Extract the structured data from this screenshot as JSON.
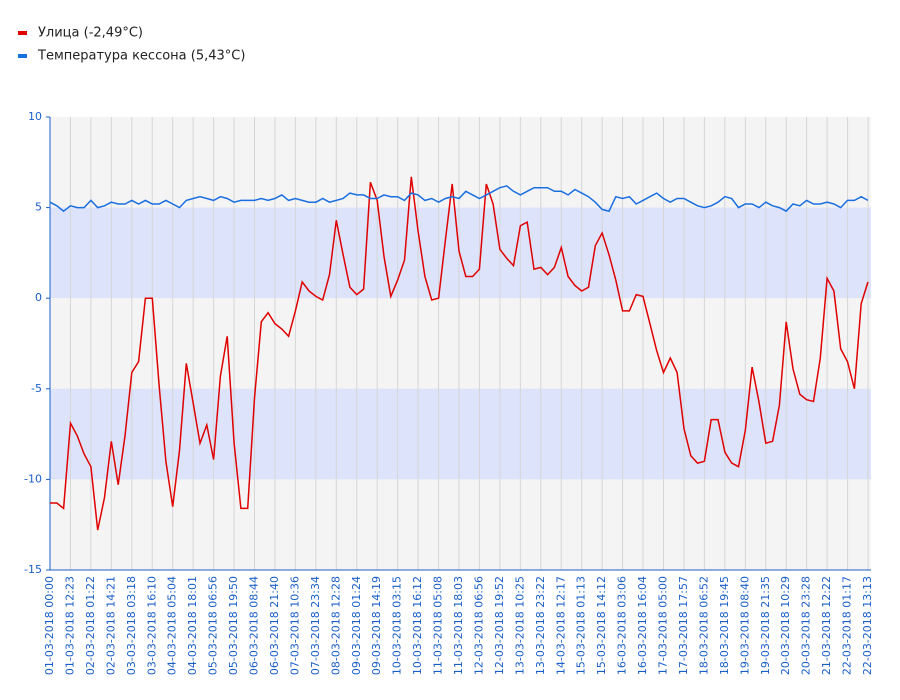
{
  "chart_data": {
    "type": "line",
    "legend": "top-left",
    "grid": true,
    "ylim": [
      -15,
      10
    ],
    "yticks": [
      10,
      5,
      0,
      -5,
      -10,
      -15
    ],
    "categories": [
      "01-03-2018 00:00",
      null,
      null,
      "01-03-2018 12:23",
      null,
      null,
      "02-03-2018 01:22",
      null,
      null,
      "02-03-2018 14:21",
      null,
      null,
      "03-03-2018 03:18",
      null,
      null,
      "03-03-2018 16:10",
      null,
      null,
      "04-03-2018 05:04",
      null,
      null,
      "04-03-2018 18:01",
      null,
      null,
      "05-03-2018 06:56",
      null,
      null,
      "05-03-2018 19:50",
      null,
      null,
      "06-03-2018 08:44",
      null,
      null,
      "06-03-2018 21:40",
      null,
      null,
      "07-03-2018 10:36",
      null,
      null,
      "07-03-2018 23:34",
      null,
      null,
      "08-03-2018 12:28",
      null,
      null,
      "09-03-2018 01:24",
      null,
      null,
      "09-03-2018 14:19",
      null,
      null,
      "10-03-2018 03:15",
      null,
      null,
      "10-03-2018 16:12",
      null,
      null,
      "11-03-2018 05:08",
      null,
      null,
      "11-03-2018 18:03",
      null,
      null,
      "12-03-2018 06:56",
      null,
      null,
      "12-03-2018 19:52",
      null,
      null,
      "13-03-2018 10:25",
      null,
      null,
      "13-03-2018 23:22",
      null,
      null,
      "14-03-2018 12:17",
      null,
      null,
      "15-03-2018 01:13",
      null,
      null,
      "15-03-2018 14:12",
      null,
      null,
      "16-03-2018 03:06",
      null,
      null,
      "16-03-2018 16:04",
      null,
      null,
      "17-03-2018 05:00",
      null,
      null,
      "17-03-2018 17:57",
      null,
      null,
      "18-03-2018 06:52",
      null,
      null,
      "18-03-2018 19:45",
      null,
      null,
      "19-03-2018 08:40",
      null,
      null,
      "19-03-2018 21:35",
      null,
      null,
      "20-03-2018 10:29",
      null,
      null,
      "20-03-2018 23:28",
      null,
      null,
      "21-03-2018 12:22",
      null,
      null,
      "22-03-2018 01:17",
      null,
      null,
      "22-03-2018 13:13"
    ],
    "series": [
      {
        "name": "Улица (-2,49°C)",
        "color": "#e00000",
        "values": [
          -11.3,
          -11.3,
          -11.6,
          -6.9,
          -7.6,
          -8.6,
          -9.3,
          -12.8,
          -11.0,
          -7.9,
          -10.3,
          -7.6,
          -4.1,
          -3.5,
          0.0,
          0.0,
          -4.8,
          -9.0,
          -11.5,
          -8.4,
          -3.6,
          -5.8,
          -8.0,
          -7.0,
          -8.9,
          -4.3,
          -2.1,
          -8.0,
          -11.6,
          -11.6,
          -5.5,
          -1.3,
          -0.8,
          -1.4,
          -1.7,
          -2.1,
          -0.7,
          0.9,
          0.4,
          0.1,
          -0.1,
          1.3,
          4.3,
          2.4,
          0.6,
          0.2,
          0.5,
          6.4,
          5.4,
          2.3,
          0.1,
          1.0,
          2.1,
          6.7,
          3.7,
          1.2,
          -0.1,
          0.0,
          3.2,
          6.3,
          2.6,
          1.2,
          1.2,
          1.6,
          6.3,
          5.2,
          2.7,
          2.2,
          1.8,
          4.0,
          4.2,
          1.6,
          1.7,
          1.3,
          1.7,
          2.8,
          1.2,
          0.7,
          0.4,
          0.6,
          2.9,
          3.6,
          2.4,
          1.0,
          -0.7,
          -0.7,
          0.2,
          0.1,
          -1.4,
          -2.9,
          -4.1,
          -3.3,
          -4.1,
          -7.2,
          -8.7,
          -9.1,
          -9.0,
          -6.7,
          -6.7,
          -8.5,
          -9.1,
          -9.3,
          -7.3,
          -3.8,
          -5.7,
          -8.0,
          -7.9,
          -5.9,
          -1.3,
          -3.9,
          -5.3,
          -5.6,
          -5.7,
          -3.3,
          1.1,
          0.4,
          -2.8,
          -3.5,
          -5.0,
          -0.3,
          0.9
        ]
      },
      {
        "name": "Температура кессона (5,43°C)",
        "color": "#1a6fe0",
        "values": [
          5.3,
          5.1,
          4.8,
          5.1,
          5.0,
          5.0,
          5.4,
          5.0,
          5.1,
          5.3,
          5.2,
          5.2,
          5.4,
          5.2,
          5.4,
          5.2,
          5.2,
          5.4,
          5.2,
          5.0,
          5.4,
          5.5,
          5.6,
          5.5,
          5.4,
          5.6,
          5.5,
          5.3,
          5.4,
          5.4,
          5.4,
          5.5,
          5.4,
          5.5,
          5.7,
          5.4,
          5.5,
          5.4,
          5.3,
          5.3,
          5.5,
          5.3,
          5.4,
          5.5,
          5.8,
          5.7,
          5.7,
          5.5,
          5.5,
          5.7,
          5.6,
          5.6,
          5.4,
          5.8,
          5.7,
          5.4,
          5.5,
          5.3,
          5.5,
          5.6,
          5.5,
          5.9,
          5.7,
          5.5,
          5.7,
          5.9,
          6.1,
          6.2,
          5.9,
          5.7,
          5.9,
          6.1,
          6.1,
          6.1,
          5.9,
          5.9,
          5.7,
          6.0,
          5.8,
          5.6,
          5.3,
          4.9,
          4.8,
          5.6,
          5.5,
          5.6,
          5.2,
          5.4,
          5.6,
          5.8,
          5.5,
          5.3,
          5.5,
          5.5,
          5.3,
          5.1,
          5.0,
          5.1,
          5.3,
          5.6,
          5.5,
          5.0,
          5.2,
          5.2,
          5.0,
          5.3,
          5.1,
          5.0,
          4.8,
          5.2,
          5.1,
          5.4,
          5.2,
          5.2,
          5.3,
          5.2,
          5.0,
          5.4,
          5.4,
          5.6,
          5.4
        ]
      }
    ]
  }
}
